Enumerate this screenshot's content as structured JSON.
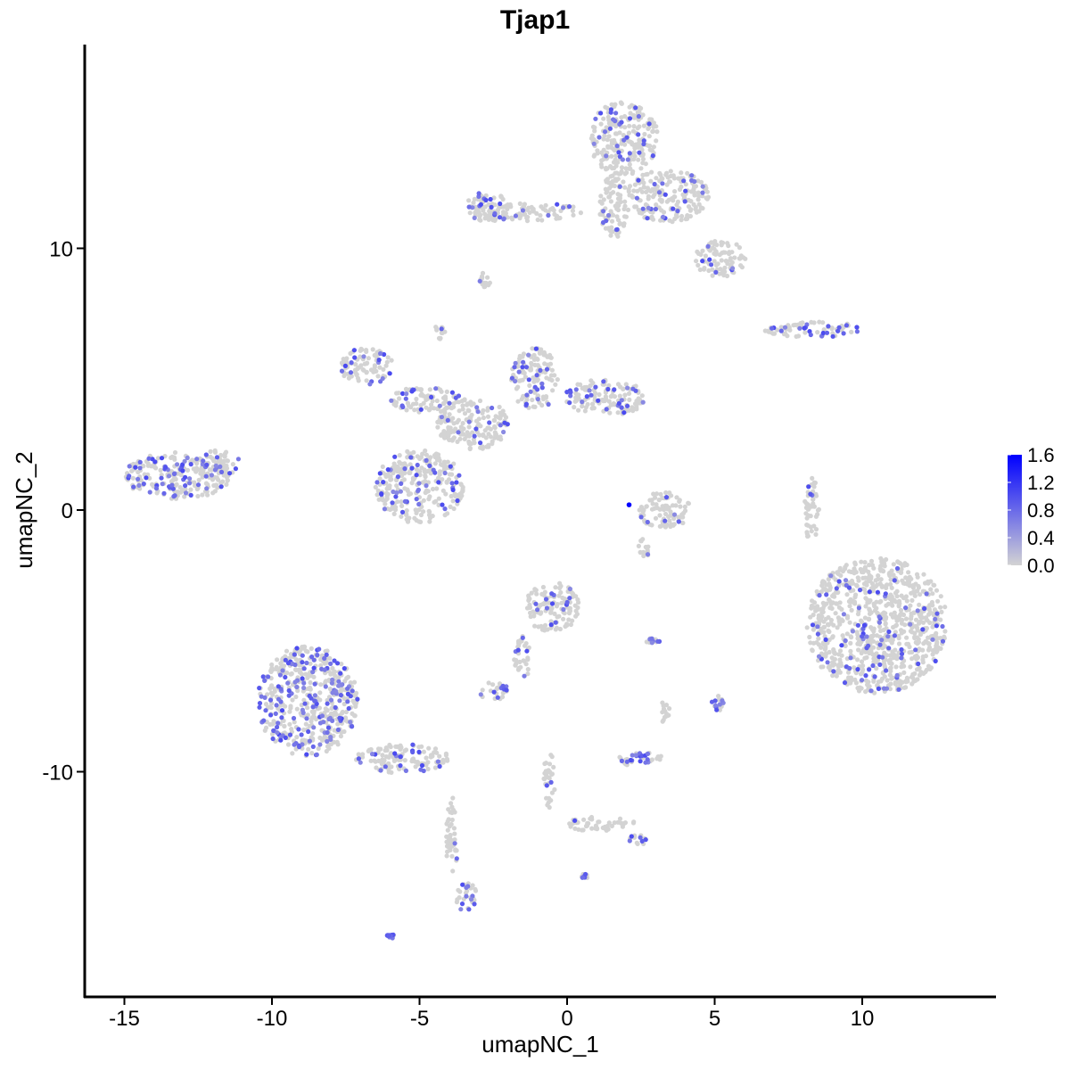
{
  "chart_data": {
    "type": "scatter",
    "title": "Tjap1",
    "xlabel": "umapNC_1",
    "ylabel": "umapNC_2",
    "xlim": [
      -16.35,
      14.5
    ],
    "ylim": [
      -18.6,
      17.8
    ],
    "xticks": [
      -15,
      -10,
      -5,
      0,
      5,
      10
    ],
    "xtick_labels": [
      "-15",
      "-10",
      "-5",
      "0",
      "5",
      "10"
    ],
    "yticks": [
      -10,
      0,
      10
    ],
    "ytick_labels": [
      "-10",
      "0",
      "10"
    ],
    "grid": false,
    "legend": {
      "placement": "right",
      "type": "colorbar",
      "labels": [
        "1.6",
        "1.2",
        "0.8",
        "0.4",
        "0.0"
      ],
      "values": [
        1.6,
        1.2,
        0.8,
        0.4,
        0.0
      ],
      "low_color": "#D3D3D3",
      "high_color": "#0000FF"
    },
    "regions": [
      {
        "x": 1.9,
        "y": 14.2,
        "rx": 1.2,
        "ry": 1.4,
        "expr": 0.12
      },
      {
        "x": 3.4,
        "y": 12.0,
        "rx": 1.4,
        "ry": 1.0,
        "expr": 0.12
      },
      {
        "x": 5.2,
        "y": 9.6,
        "rx": 0.9,
        "ry": 0.7,
        "expr": 0.1
      },
      {
        "x": 1.6,
        "y": 11.6,
        "rx": 0.5,
        "ry": 1.2,
        "expr": 0.08
      },
      {
        "x": -1.4,
        "y": 11.4,
        "rx": 1.9,
        "ry": 0.35,
        "expr": 0.1
      },
      {
        "x": -2.7,
        "y": 11.6,
        "rx": 0.7,
        "ry": 0.6,
        "expr": 0.2
      },
      {
        "x": -2.8,
        "y": 8.8,
        "rx": 0.2,
        "ry": 0.3,
        "expr": 0.1
      },
      {
        "x": 8.3,
        "y": 6.9,
        "rx": 1.7,
        "ry": 0.3,
        "expr": 0.3
      },
      {
        "x": -6.8,
        "y": 5.5,
        "rx": 0.9,
        "ry": 0.7,
        "expr": 0.2
      },
      {
        "x": -4.8,
        "y": 4.2,
        "rx": 1.2,
        "ry": 0.5,
        "expr": 0.2
      },
      {
        "x": -3.2,
        "y": 3.3,
        "rx": 1.2,
        "ry": 1.0,
        "expr": 0.1
      },
      {
        "x": -1.1,
        "y": 5.0,
        "rx": 0.8,
        "ry": 1.2,
        "expr": 0.15
      },
      {
        "x": 1.3,
        "y": 4.3,
        "rx": 1.4,
        "ry": 0.7,
        "expr": 0.15
      },
      {
        "x": -5.0,
        "y": 0.9,
        "rx": 1.5,
        "ry": 1.4,
        "expr": 0.18
      },
      {
        "x": -4.3,
        "y": 6.8,
        "rx": 0.2,
        "ry": 0.3,
        "expr": 0.1
      },
      {
        "x": -13.2,
        "y": 1.3,
        "rx": 1.8,
        "ry": 0.9,
        "expr": 0.25
      },
      {
        "x": -11.8,
        "y": 1.8,
        "rx": 0.7,
        "ry": 0.5,
        "expr": 0.15
      },
      {
        "x": 3.3,
        "y": 0.0,
        "rx": 0.9,
        "ry": 0.7,
        "expr": 0.08
      },
      {
        "x": 10.5,
        "y": -4.4,
        "rx": 2.4,
        "ry": 2.6,
        "expr": 0.1
      },
      {
        "x": 8.3,
        "y": 0.0,
        "rx": 0.25,
        "ry": 1.3,
        "expr": 0.1
      },
      {
        "x": -8.8,
        "y": -7.3,
        "rx": 1.7,
        "ry": 2.1,
        "expr": 0.3
      },
      {
        "x": -5.6,
        "y": -9.5,
        "rx": 1.6,
        "ry": 0.55,
        "expr": 0.2
      },
      {
        "x": -3.9,
        "y": -12.5,
        "rx": 0.2,
        "ry": 1.6,
        "expr": 0.05
      },
      {
        "x": -3.4,
        "y": -14.8,
        "rx": 0.35,
        "ry": 0.6,
        "expr": 0.4
      },
      {
        "x": -6.0,
        "y": -16.3,
        "rx": 0.15,
        "ry": 0.1,
        "expr": 0.8
      },
      {
        "x": -0.5,
        "y": -3.7,
        "rx": 0.9,
        "ry": 1.0,
        "expr": 0.12
      },
      {
        "x": -1.5,
        "y": -5.6,
        "rx": 0.3,
        "ry": 0.8,
        "expr": 0.1
      },
      {
        "x": -2.5,
        "y": -6.9,
        "rx": 0.5,
        "ry": 0.35,
        "expr": 0.3
      },
      {
        "x": 2.5,
        "y": -9.5,
        "rx": 0.8,
        "ry": 0.3,
        "expr": 0.35
      },
      {
        "x": -0.6,
        "y": -10.3,
        "rx": 0.2,
        "ry": 1.1,
        "expr": 0.12
      },
      {
        "x": 1.2,
        "y": -12.0,
        "rx": 1.2,
        "ry": 0.3,
        "expr": 0.05
      },
      {
        "x": 2.4,
        "y": -12.6,
        "rx": 0.3,
        "ry": 0.2,
        "expr": 0.2
      },
      {
        "x": 0.6,
        "y": -14.0,
        "rx": 0.12,
        "ry": 0.1,
        "expr": 0.5
      },
      {
        "x": 5.1,
        "y": -7.4,
        "rx": 0.2,
        "ry": 0.3,
        "expr": 0.5
      },
      {
        "x": 2.9,
        "y": -5.0,
        "rx": 0.3,
        "ry": 0.1,
        "expr": 0.4
      },
      {
        "x": 3.3,
        "y": -7.8,
        "rx": 0.2,
        "ry": 0.5,
        "expr": 0.05
      },
      {
        "x": 2.6,
        "y": -1.5,
        "rx": 0.2,
        "ry": 0.4,
        "expr": 0.1
      }
    ],
    "max_point": {
      "x": 2.1,
      "y": 0.2,
      "value": 1.6
    }
  }
}
